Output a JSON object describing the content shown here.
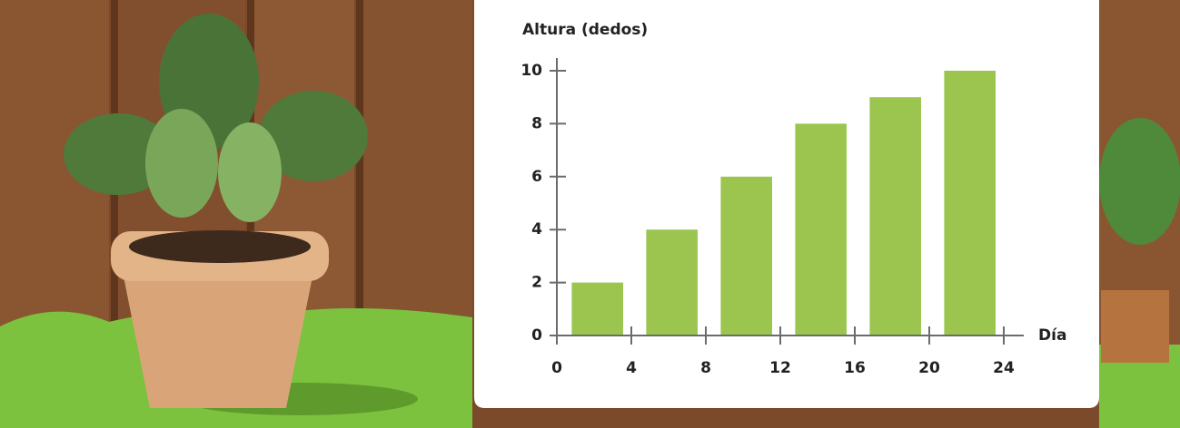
{
  "chart_data": {
    "type": "histogram",
    "x_label": "Día",
    "y_label": "Altura (dedos)",
    "bins": [
      0,
      4,
      8,
      12,
      16,
      20,
      24
    ],
    "values": [
      2,
      4,
      6,
      8,
      9,
      10
    ],
    "color": "#9bc54f",
    "xlim": [
      0,
      24
    ],
    "ylim": [
      0,
      10
    ],
    "xticks": [
      0,
      4,
      8,
      12,
      16,
      20,
      24
    ],
    "yticks": [
      0,
      2,
      4,
      6,
      8,
      10
    ]
  }
}
